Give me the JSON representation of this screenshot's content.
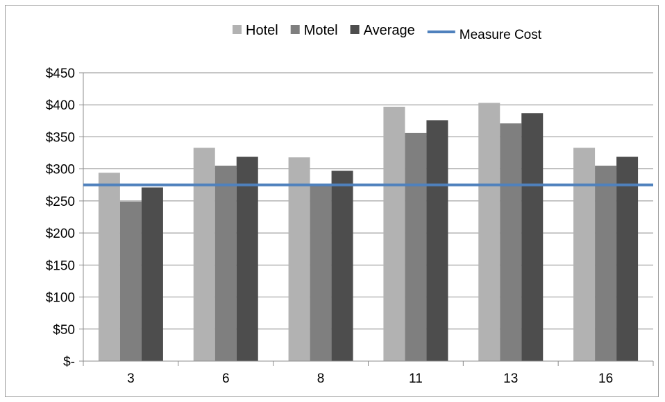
{
  "chart_data": {
    "type": "bar",
    "categories": [
      "3",
      "6",
      "8",
      "11",
      "13",
      "16"
    ],
    "series": [
      {
        "name": "Hotel",
        "color": "#b2b2b2",
        "values": [
          294,
          333,
          318,
          397,
          403,
          333
        ]
      },
      {
        "name": "Motel",
        "color": "#7f7f7f",
        "values": [
          249,
          305,
          275,
          356,
          371,
          305
        ]
      },
      {
        "name": "Average",
        "color": "#4d4d4d",
        "values": [
          271,
          319,
          297,
          376,
          387,
          319
        ]
      }
    ],
    "reference_line": {
      "name": "Measure Cost",
      "value": 275,
      "color": "#4f81bd"
    },
    "ylim": [
      0,
      450
    ],
    "yticks": [
      {
        "value": 0,
        "label": "$-"
      },
      {
        "value": 50,
        "label": "$50"
      },
      {
        "value": 100,
        "label": "$100"
      },
      {
        "value": 150,
        "label": "$150"
      },
      {
        "value": 200,
        "label": "$200"
      },
      {
        "value": 250,
        "label": "$250"
      },
      {
        "value": 300,
        "label": "$300"
      },
      {
        "value": 350,
        "label": "$350"
      },
      {
        "value": 400,
        "label": "$400"
      },
      {
        "value": 450,
        "label": "$450"
      }
    ],
    "grid": "horizontal",
    "legend": "top"
  }
}
